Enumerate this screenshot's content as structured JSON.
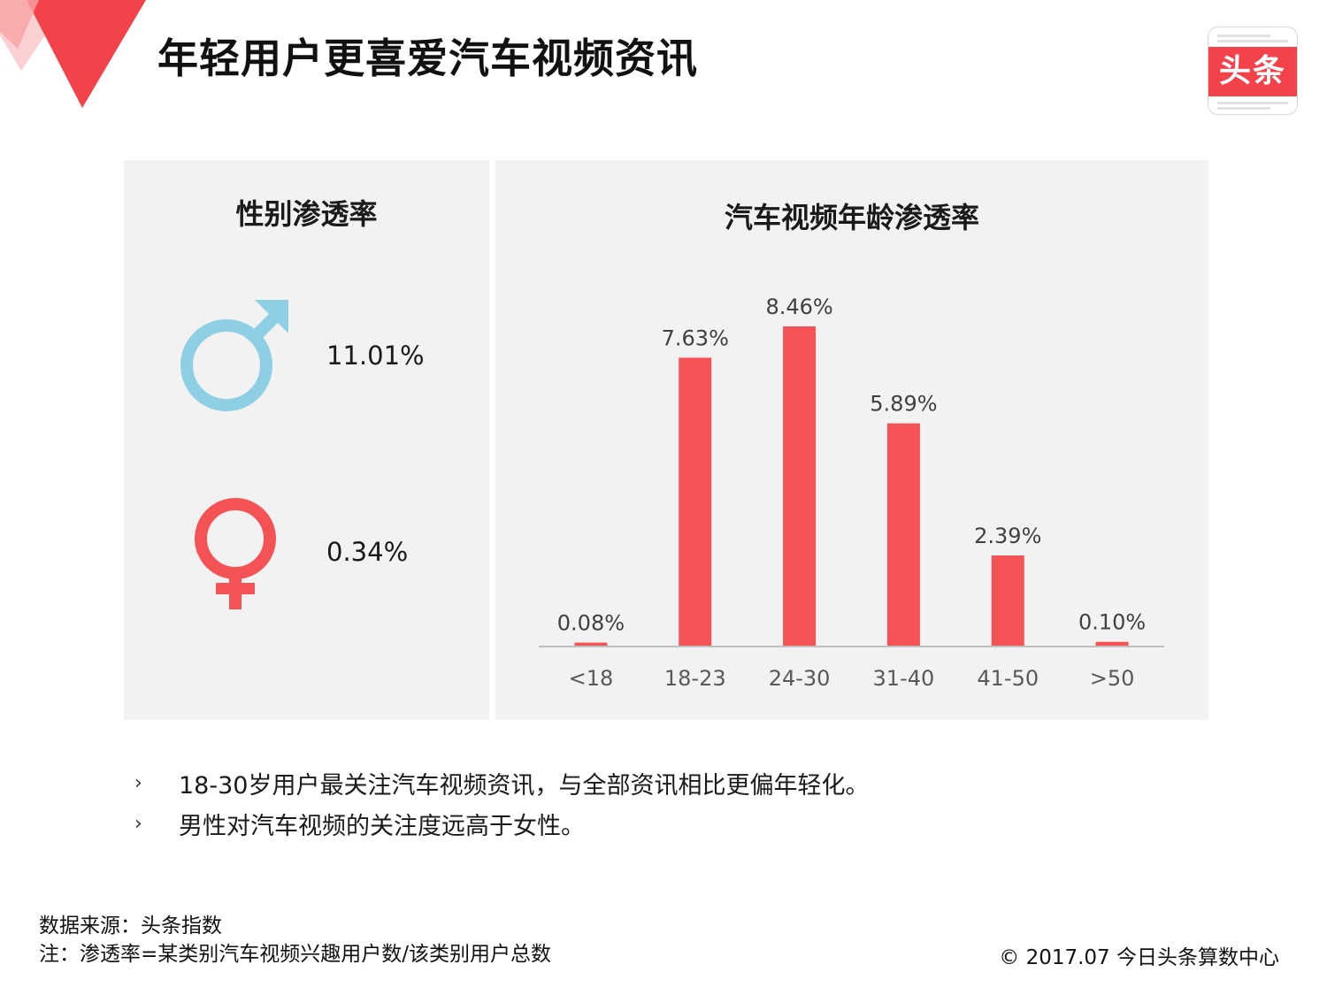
{
  "page": {
    "title": "年轻用户更喜爱汽车视频资讯",
    "logo_text": "头条",
    "accent_color": "#f4424a"
  },
  "gender_panel": {
    "title": "性别渗透率",
    "items": [
      {
        "icon": "male-symbol-icon",
        "color": "#8ecfe6",
        "value": "11.01%"
      },
      {
        "icon": "female-symbol-icon",
        "color": "#f55256",
        "value": "0.34%"
      }
    ]
  },
  "age_panel": {
    "title": "汽车视频年龄渗透率"
  },
  "chart_data": {
    "type": "bar",
    "title": "汽车视频年龄渗透率",
    "categories": [
      "<18",
      "18-23",
      "24-30",
      "31-40",
      "41-50",
      ">50"
    ],
    "values": [
      0.08,
      7.63,
      8.46,
      5.89,
      2.39,
      0.1
    ],
    "value_labels": [
      "0.08%",
      "7.63%",
      "8.46%",
      "5.89%",
      "2.39%",
      "0.10%"
    ],
    "unit": "%",
    "ylim": [
      0,
      9
    ],
    "bar_color": "#f55256",
    "grid": false,
    "legend": "none"
  },
  "notes": {
    "bullets": [
      "18-30岁用户最关注汽车视频资讯，与全部资讯相比更偏年轻化。",
      "男性对汽车视频的关注度远高于女性。"
    ],
    "bullet_mark": "›"
  },
  "footer": {
    "source": "数据来源：头条指数",
    "note": "注：渗透率=某类别汽车视频兴趣用户数/该类别用户总数",
    "copyright": "© 2017.07 今日头条算数中心"
  }
}
